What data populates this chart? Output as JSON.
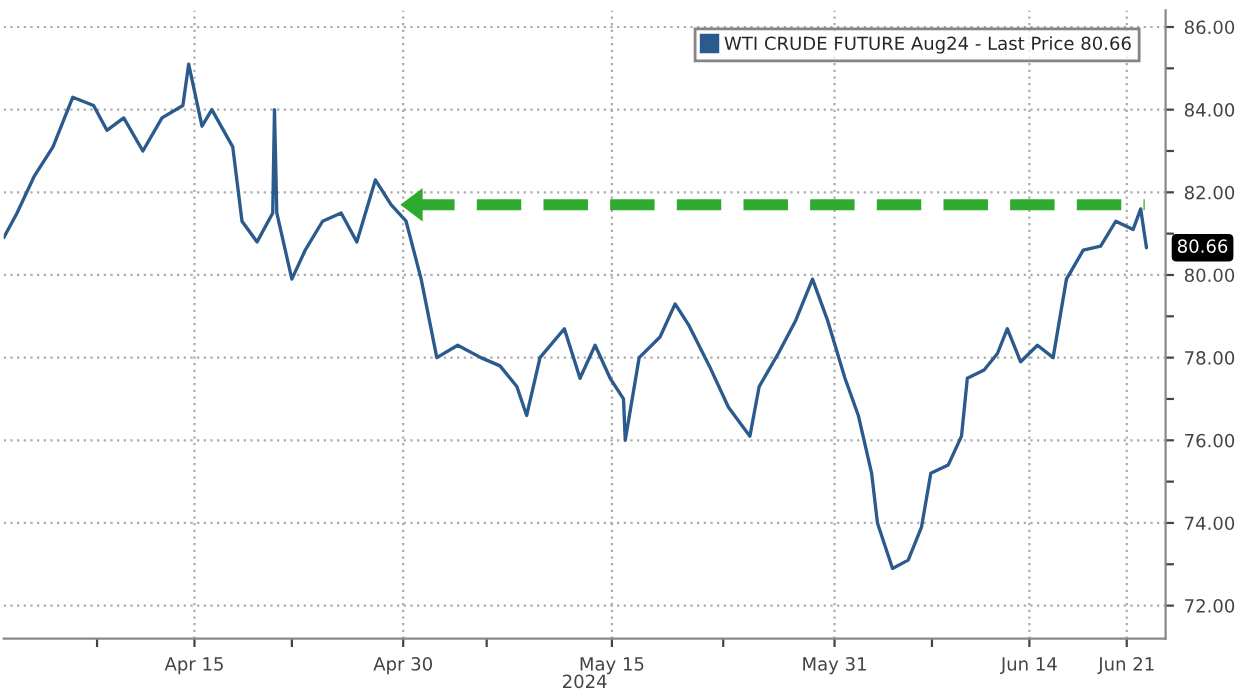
{
  "chart_data": {
    "type": "line",
    "xlabel": "2024",
    "series": [
      {
        "name": "WTI CRUDE FUTURE Aug24 - Last Price 80.66",
        "color": "#2b5a8c",
        "x": [
          "2024-04-01T07:00",
          "2024-04-02T06:00",
          "2024-04-03T12:00",
          "2024-04-04T20:00",
          "2024-04-06T06:00",
          "2024-04-07T18:00",
          "2024-04-08T17:00",
          "2024-04-09T22:00",
          "2024-04-11T07:00",
          "2024-04-12T16:00",
          "2024-04-14T04:00",
          "2024-04-14T14:00",
          "2024-04-15T13:00",
          "2024-04-16T06:00",
          "2024-04-17T18:00",
          "2024-04-18T10:00",
          "2024-04-19T12:00",
          "2024-04-20T15:00",
          "2024-04-20T18:00",
          "2024-04-20T22:00",
          "2024-04-22T00:00",
          "2024-04-22T23:00",
          "2024-04-24T05:00",
          "2024-04-25T13:00",
          "2024-04-26T16:00",
          "2024-04-28T00:00",
          "2024-04-29T03:00",
          "2024-04-30T05:00",
          "2024-05-01T07:00",
          "2024-05-02T10:00",
          "2024-05-03T22:00",
          "2024-05-05T14:00",
          "2024-05-06T23:00",
          "2024-05-08T04:00",
          "2024-05-08T21:00",
          "2024-05-09T20:00",
          "2024-05-11T14:00",
          "2024-05-12T17:00",
          "2024-05-13T19:00",
          "2024-05-14T21:00",
          "2024-05-15T20:00",
          "2024-05-15T23:00",
          "2024-05-16T23:00",
          "2024-05-18T11:00",
          "2024-05-19T13:00",
          "2024-05-20T12:00",
          "2024-05-22T00:00",
          "2024-05-23T09:00",
          "2024-05-24T22:00",
          "2024-05-25T14:00",
          "2024-05-26T23:00",
          "2024-05-28T05:00",
          "2024-05-29T10:00",
          "2024-05-30T12:00",
          "2024-05-31T18:00",
          "2024-06-01T17:00",
          "2024-06-02T16:00",
          "2024-06-03T02:00",
          "2024-06-04T04:00",
          "2024-06-05T07:00",
          "2024-06-06T06:00",
          "2024-06-06T22:00",
          "2024-06-08T04:00",
          "2024-06-09T03:00",
          "2024-06-09T13:00",
          "2024-06-10T18:00",
          "2024-06-11T17:00",
          "2024-06-12T10:00",
          "2024-06-13T09:00",
          "2024-06-14T14:00",
          "2024-06-15T17:00",
          "2024-06-16T16:00",
          "2024-06-17T21:00",
          "2024-06-19T03:00",
          "2024-06-20T05:00",
          "2024-06-21T11:00",
          "2024-06-22T00:00",
          "2024-06-22T10:00"
        ],
        "values": [
          80.9,
          81.5,
          82.4,
          83.1,
          84.3,
          84.1,
          83.5,
          83.8,
          83.0,
          83.8,
          84.1,
          85.1,
          83.6,
          84.0,
          83.1,
          81.3,
          80.8,
          81.5,
          84.0,
          81.5,
          79.9,
          80.6,
          81.3,
          81.5,
          80.8,
          82.3,
          81.7,
          81.3,
          79.9,
          78.0,
          78.3,
          78.0,
          77.8,
          77.3,
          76.6,
          78.0,
          78.7,
          77.5,
          78.3,
          77.5,
          77.0,
          76.0,
          78.0,
          78.5,
          79.3,
          78.8,
          77.8,
          76.8,
          76.1,
          77.3,
          78.1,
          78.9,
          79.9,
          78.9,
          77.5,
          76.6,
          75.2,
          74.0,
          72.9,
          73.1,
          73.9,
          75.2,
          75.4,
          76.1,
          77.5,
          77.7,
          78.1,
          78.7,
          77.9,
          78.3,
          78.0,
          79.9,
          80.6,
          80.7,
          81.3,
          81.1,
          81.6,
          80.66
        ]
      },
      {
        "type": "line",
        "color": "#2eaa2e",
        "line_style": "dashed",
        "x": [
          "2024-04-30T12:00",
          "2024-06-22T07:00"
        ],
        "values": [
          81.7,
          81.7
        ]
      }
    ],
    "annotations": [
      {
        "text": "80.66",
        "x": "2024-06-22T10:00",
        "y": 80.66
      }
    ],
    "xlim": [
      "2024-04-01T07:00",
      "2024-06-23T19:00"
    ],
    "xticks": [
      {
        "value": "2024-04-08",
        "label": null
      },
      {
        "value": "2024-04-15",
        "label": "Apr 15"
      },
      {
        "value": "2024-04-22",
        "label": null
      },
      {
        "value": "2024-04-30",
        "label": "Apr 30"
      },
      {
        "value": "2024-05-06",
        "label": null
      },
      {
        "value": "2024-05-15",
        "label": "May 15"
      },
      {
        "value": "2024-05-23",
        "label": null
      },
      {
        "value": "2024-05-31",
        "label": "May 31"
      },
      {
        "value": "2024-06-07",
        "label": null
      },
      {
        "value": "2024-06-14",
        "label": "Jun 14"
      },
      {
        "value": "2024-06-21",
        "label": "Jun 21"
      }
    ],
    "ylim": [
      71.2,
      86.4
    ],
    "yticks": [
      {
        "value": 72,
        "label": "72.00"
      },
      {
        "value": 73,
        "label": null
      },
      {
        "value": 74,
        "label": "74.00"
      },
      {
        "value": 75,
        "label": null
      },
      {
        "value": 76,
        "label": "76.00"
      },
      {
        "value": 77,
        "label": null
      },
      {
        "value": 78,
        "label": "78.00"
      },
      {
        "value": 79,
        "label": null
      },
      {
        "value": 80,
        "label": "80.00"
      },
      {
        "value": 81,
        "label": null
      },
      {
        "value": 82,
        "label": "82.00"
      },
      {
        "value": 83,
        "label": null
      },
      {
        "value": 84,
        "label": "84.00"
      },
      {
        "value": 85,
        "label": null
      },
      {
        "value": 86,
        "label": "86.00"
      }
    ],
    "grid": true,
    "legend": "top right"
  }
}
